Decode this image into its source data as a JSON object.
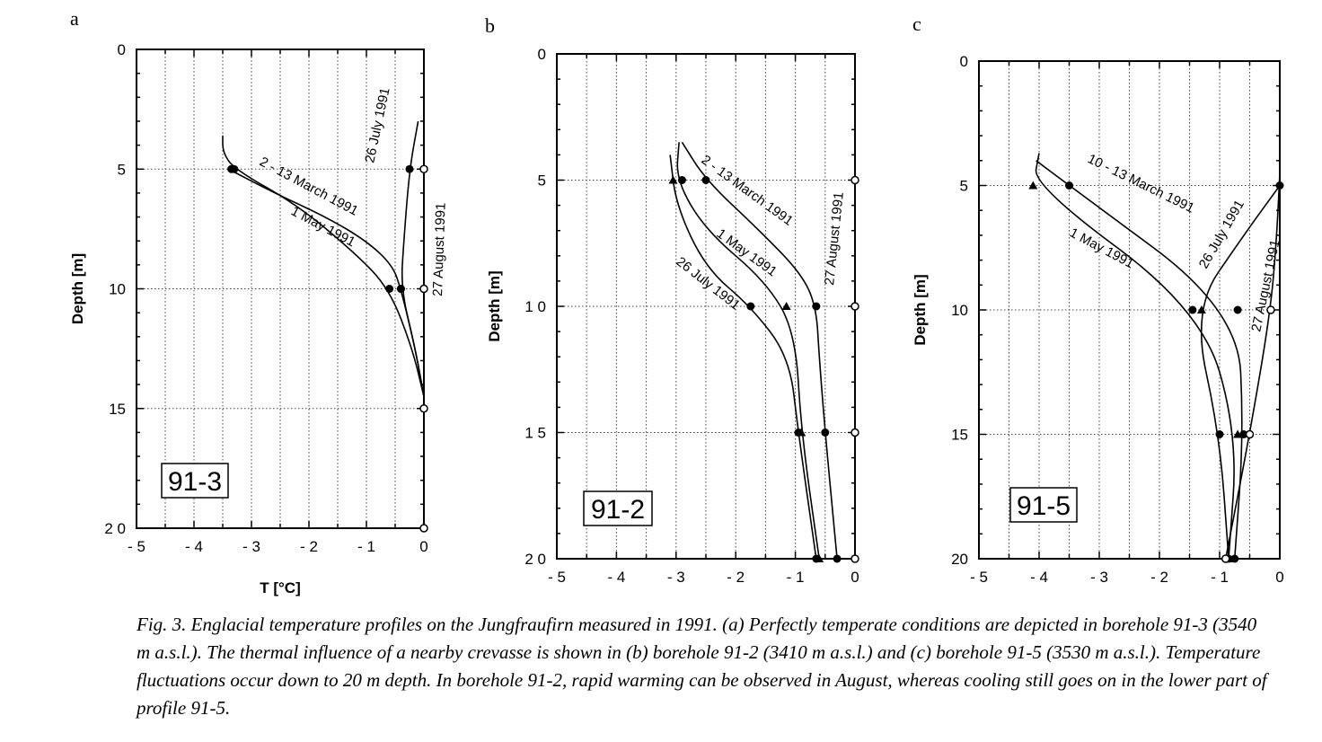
{
  "caption": "Fig. 3. Englacial temperature profiles on the Jungfraufirn measured in 1991. (a) Perfectly temperate conditions are depicted in borehole 91-3 (3540 m a.s.l.). The thermal influence of a nearby crevasse is shown in (b) borehole 91-2 (3410 m a.s.l.) and (c) borehole 91-5 (3530 m a.s.l.). Temperature fluctuations occur down to 20 m depth. In borehole 91-2, rapid warming can be observed in August, whereas cooling still goes on in the lower part of profile 91-5.",
  "chart_data": [
    {
      "type": "line",
      "panel": "a",
      "box_label": "91-3",
      "xlabel": "T   [°C]",
      "ylabel": "Depth   [m]",
      "xlim": [
        -5,
        0
      ],
      "ylim": [
        20,
        0
      ],
      "x_ticks": [
        "- 5",
        "- 4",
        "- 3",
        "- 2",
        "- 1",
        "0"
      ],
      "y_ticks": [
        "0",
        "5",
        "10",
        "15",
        "2 0"
      ],
      "grid": true,
      "series": [
        {
          "name": "2 - 13 March 1991",
          "marker": "circle-filled",
          "points": [
            [
              -3.4,
              5
            ],
            [
              -2.6,
              6
            ],
            [
              -1.7,
              7
            ],
            [
              -1.0,
              8
            ],
            [
              -0.55,
              9
            ],
            [
              -0.4,
              10
            ],
            [
              -0.15,
              12.5
            ],
            [
              0,
              14.5
            ]
          ],
          "markers": [
            [
              -3.35,
              5
            ],
            [
              -0.4,
              10
            ]
          ]
        },
        {
          "name": "1 May 1991",
          "marker": "circle-filled",
          "points": [
            [
              -3.5,
              3.6
            ],
            [
              -3.5,
              4.3
            ],
            [
              -3.3,
              5
            ],
            [
              -2.2,
              6.5
            ],
            [
              -1.2,
              8.5
            ],
            [
              -0.6,
              10
            ],
            [
              -0.2,
              12.5
            ],
            [
              0,
              14.5
            ]
          ],
          "markers": [
            [
              -3.3,
              5
            ],
            [
              -0.6,
              10
            ]
          ]
        },
        {
          "name": "26 July 1991",
          "marker": "circle-filled",
          "points": [
            [
              -0.1,
              3
            ],
            [
              -0.25,
              5
            ],
            [
              -0.35,
              8
            ],
            [
              -0.4,
              10
            ],
            [
              -0.15,
              12.5
            ],
            [
              0,
              14.5
            ]
          ],
          "markers": [
            [
              -0.25,
              5
            ],
            [
              -0.4,
              10
            ]
          ]
        },
        {
          "name": "27 August 1991",
          "marker": "circle-open",
          "points": [
            [
              0,
              5
            ],
            [
              0,
              10
            ],
            [
              0,
              15
            ],
            [
              0,
              20
            ]
          ],
          "markers": [
            [
              0,
              5
            ],
            [
              0,
              10
            ],
            [
              0,
              15
            ],
            [
              0,
              20
            ]
          ]
        }
      ]
    },
    {
      "type": "line",
      "panel": "b",
      "box_label": "91-2",
      "xlabel": "",
      "ylabel": "Depth   [m]",
      "xlim": [
        -5,
        0
      ],
      "ylim": [
        20,
        0
      ],
      "x_ticks": [
        "- 5",
        "- 4",
        "- 3",
        "- 2",
        "- 1",
        "0"
      ],
      "y_ticks": [
        "0",
        "5",
        "1 0",
        "1 5",
        "2 0"
      ],
      "grid": true,
      "series": [
        {
          "name": "2 - 13 March 1991",
          "marker": "circle-filled",
          "points": [
            [
              -2.9,
              3.5
            ],
            [
              -2.5,
              5
            ],
            [
              -1.6,
              7
            ],
            [
              -0.9,
              8.7
            ],
            [
              -0.65,
              10
            ],
            [
              -0.6,
              12
            ],
            [
              -0.5,
              15
            ],
            [
              -0.3,
              20
            ]
          ],
          "markers": [
            [
              -2.5,
              5
            ],
            [
              -0.65,
              10
            ],
            [
              -0.5,
              15
            ],
            [
              -0.3,
              20
            ]
          ]
        },
        {
          "name": "1 May 1991",
          "marker": "triangle",
          "points": [
            [
              -2.95,
              3.5
            ],
            [
              -3.0,
              5
            ],
            [
              -2.5,
              7
            ],
            [
              -1.5,
              9
            ],
            [
              -1.0,
              11
            ],
            [
              -0.9,
              15
            ],
            [
              -0.6,
              20
            ]
          ],
          "markers": [
            [
              -3.05,
              5
            ],
            [
              -1.15,
              10
            ],
            [
              -0.9,
              15
            ],
            [
              -0.6,
              20
            ]
          ]
        },
        {
          "name": "26 July 1991",
          "marker": "circle-filled",
          "points": [
            [
              -3.1,
              4
            ],
            [
              -3.0,
              6
            ],
            [
              -2.5,
              8.5
            ],
            [
              -1.75,
              10
            ],
            [
              -1.1,
              12
            ],
            [
              -0.95,
              15
            ],
            [
              -0.65,
              20
            ]
          ],
          "markers": [
            [
              -2.9,
              5
            ],
            [
              -1.75,
              10
            ],
            [
              -0.95,
              15
            ],
            [
              -0.65,
              20
            ]
          ]
        },
        {
          "name": "27 August 1991",
          "marker": "circle-open",
          "points": [
            [
              0,
              3.5
            ],
            [
              0,
              5
            ],
            [
              0,
              10
            ],
            [
              0,
              15
            ],
            [
              0,
              20
            ]
          ],
          "markers": [
            [
              0,
              5
            ],
            [
              0,
              10
            ],
            [
              0,
              15
            ],
            [
              0,
              20
            ]
          ]
        }
      ]
    },
    {
      "type": "line",
      "panel": "c",
      "box_label": "91-5",
      "xlabel": "",
      "ylabel": "Depth   [m]",
      "xlim": [
        -5,
        0
      ],
      "ylim": [
        20,
        0
      ],
      "x_ticks": [
        "- 5",
        "- 4",
        "- 3",
        "- 2",
        "- 1",
        "0"
      ],
      "y_ticks": [
        "0",
        "5",
        "10",
        "15",
        "20"
      ],
      "grid": true,
      "series": [
        {
          "name": "10 - 13 March 1991",
          "marker": "circle-filled",
          "points": [
            [
              -4.05,
              4
            ],
            [
              -3.5,
              5
            ],
            [
              -0.7,
              10
            ],
            [
              -0.6,
              15
            ],
            [
              -0.75,
              20
            ]
          ],
          "markers": [
            [
              -3.5,
              5
            ],
            [
              -0.7,
              10
            ],
            [
              -0.6,
              15
            ],
            [
              -0.75,
              20
            ]
          ]
        },
        {
          "name": "1 May 1991",
          "marker": "triangle",
          "points": [
            [
              -4.0,
              3.7
            ],
            [
              -4.1,
              5
            ],
            [
              -1.3,
              10
            ],
            [
              -0.7,
              15
            ],
            [
              -0.85,
              20
            ]
          ],
          "markers": [
            [
              -4.1,
              5
            ],
            [
              -1.3,
              10
            ],
            [
              -0.7,
              15
            ],
            [
              -0.85,
              20
            ]
          ]
        },
        {
          "name": "26 July 1991",
          "marker": "circle-filled",
          "points": [
            [
              0,
              5
            ],
            [
              -0.6,
              7
            ],
            [
              -1.45,
              10
            ],
            [
              -1.0,
              15
            ],
            [
              -0.85,
              20
            ]
          ],
          "markers": [
            [
              0,
              5
            ],
            [
              -1.45,
              10
            ],
            [
              -1.0,
              15
            ],
            [
              -0.85,
              20
            ]
          ]
        },
        {
          "name": "27 August 1991",
          "marker": "circle-open",
          "points": [
            [
              0,
              4.5
            ],
            [
              -0.05,
              7
            ],
            [
              -0.15,
              10
            ],
            [
              -0.5,
              15
            ],
            [
              -0.9,
              20
            ]
          ],
          "markers": [
            [
              -0.15,
              10
            ],
            [
              -0.5,
              15
            ],
            [
              -0.9,
              20
            ]
          ]
        }
      ]
    }
  ]
}
